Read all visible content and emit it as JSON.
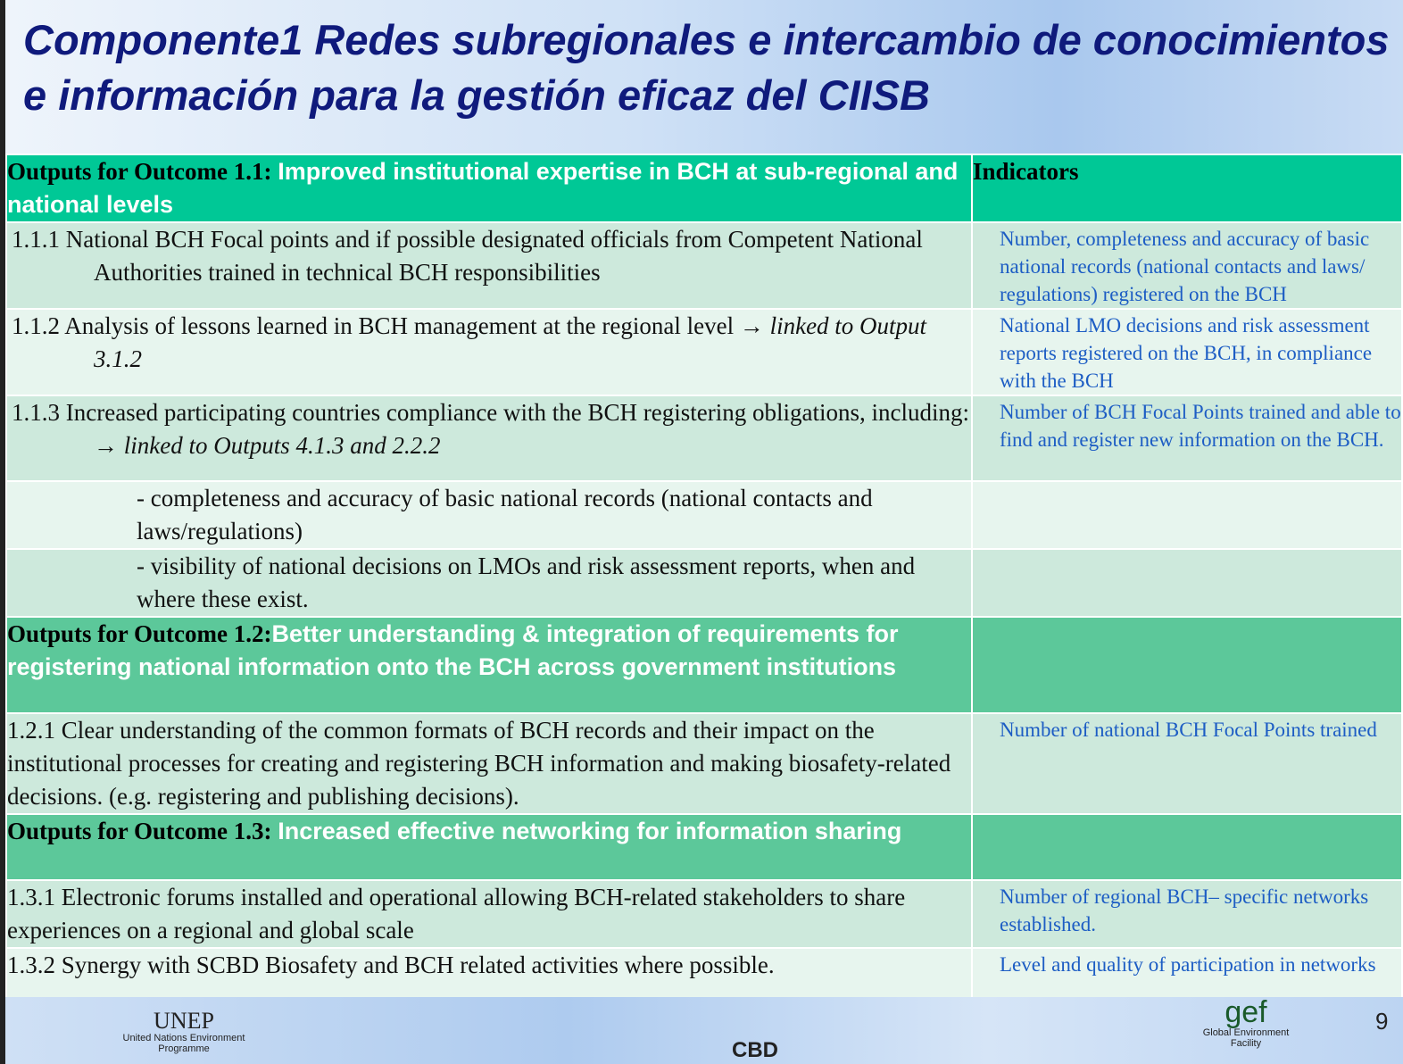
{
  "title": "Componente1  Redes subregionales e intercambio de conocimientos e información para la gestión eficaz del CIISB",
  "table": {
    "header": {
      "label": "Outputs for Outcome 1.1:",
      "text": "Improved institutional expertise in BCH at sub-regional and national levels",
      "indicators": "Indicators"
    },
    "rows": [
      {
        "output": "1.1.1 National BCH Focal points and if possible designated officials from Competent National Authorities trained in technical BCH responsibilities",
        "indicator": "Number, completeness and accuracy of basic national records (national contacts and laws/ regulations) registered on the BCH"
      },
      {
        "output": "1.1.2 Analysis of lessons learned in BCH management at the regional level →",
        "link": "linked to Output 3.1.2",
        "indicator": "National LMO decisions and risk assessment reports registered on the BCH, in compliance with the BCH"
      },
      {
        "output": "1.1.3 Increased participating countries compliance with the BCH registering obligations, including: →",
        "link": "linked to Outputs 4.1.3 and 2.2.2",
        "indicator": "Number of BCH Focal Points trained and able to find and register new information on the BCH."
      },
      {
        "output": "- completeness and accuracy of basic national records (national contacts and laws/regulations)"
      },
      {
        "output": "- visibility of national decisions on LMOs and risk assessment reports, when and where these exist."
      },
      {
        "label": "Outputs for Outcome 1.2:",
        "text": "Better understanding & integration of requirements for registering national information onto the BCH across government institutions"
      },
      {
        "output": " 1.2.1 Clear understanding of the common formats of BCH records and their impact on the institutional processes for creating and registering BCH information and making biosafety-related decisions. (e.g. registering and publishing decisions).",
        "indicator": "Number of national BCH Focal Points trained"
      },
      {
        "label": "Outputs for Outcome 1.3:",
        "text": "Increased effective networking for information sharing"
      },
      {
        "output": "1.3.1 Electronic forums installed and operational allowing BCH-related stakeholders to share experiences on a regional and global scale",
        "indicator": "Number of regional BCH– specific networks established."
      },
      {
        "output": "1.3.2 Synergy with SCBD Biosafety and BCH related activities where possible.",
        "indicator": "Level and quality of participation in networks"
      }
    ]
  },
  "footer": {
    "unep": "UNEP",
    "unep_sub": "United Nations Environment Programme",
    "cbd": "CBD",
    "gef": "gef",
    "gef_sub": "Global Environment Facility",
    "page": "9"
  }
}
